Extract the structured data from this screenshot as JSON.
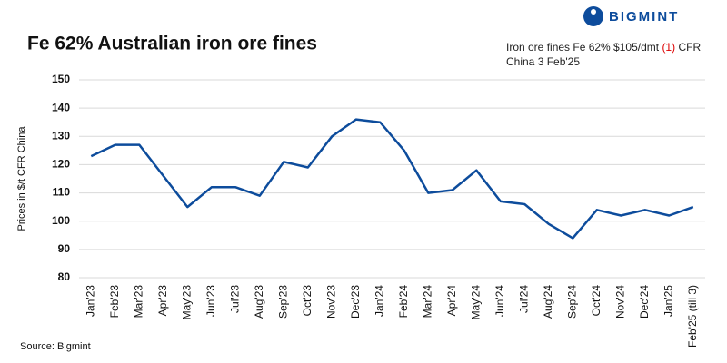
{
  "chart_data": {
    "type": "line",
    "title": "Fe 62% Australian iron ore fines",
    "logo": "BIGMINT",
    "annotation": {
      "text": "Iron ore fines Fe 62% $105/dmt",
      "change": "(1)",
      "suffix": "CFR China 3 Feb'25"
    },
    "y_label": "Prices in $/t CFR China",
    "source": "Source: Bigmint",
    "categories": [
      "Jan'23",
      "Feb'23",
      "Mar'23",
      "Apr'23",
      "May'23",
      "Jun'23",
      "Jul'23",
      "Aug'23",
      "Sep'23",
      "Oct'23",
      "Nov'23",
      "Dec'23",
      "Jan'24",
      "Feb'24",
      "Mar'24",
      "Apr'24",
      "May'24",
      "Jun'24",
      "Jul'24",
      "Aug'24",
      "Sep'24",
      "Oct'24",
      "Nov'24",
      "Dec'24",
      "Jan'25",
      "Feb'25 (till 3)"
    ],
    "values": [
      123,
      127,
      127,
      116,
      105,
      112,
      112,
      109,
      121,
      119,
      130,
      136,
      135,
      125,
      110,
      111,
      118,
      107,
      106,
      99,
      94,
      104,
      102,
      104,
      102,
      105
    ],
    "color": "#0d4c9c",
    "ylim": [
      80,
      150
    ],
    "yticks": [
      80,
      90,
      100,
      110,
      120,
      130,
      140,
      150
    ],
    "grid": true
  }
}
